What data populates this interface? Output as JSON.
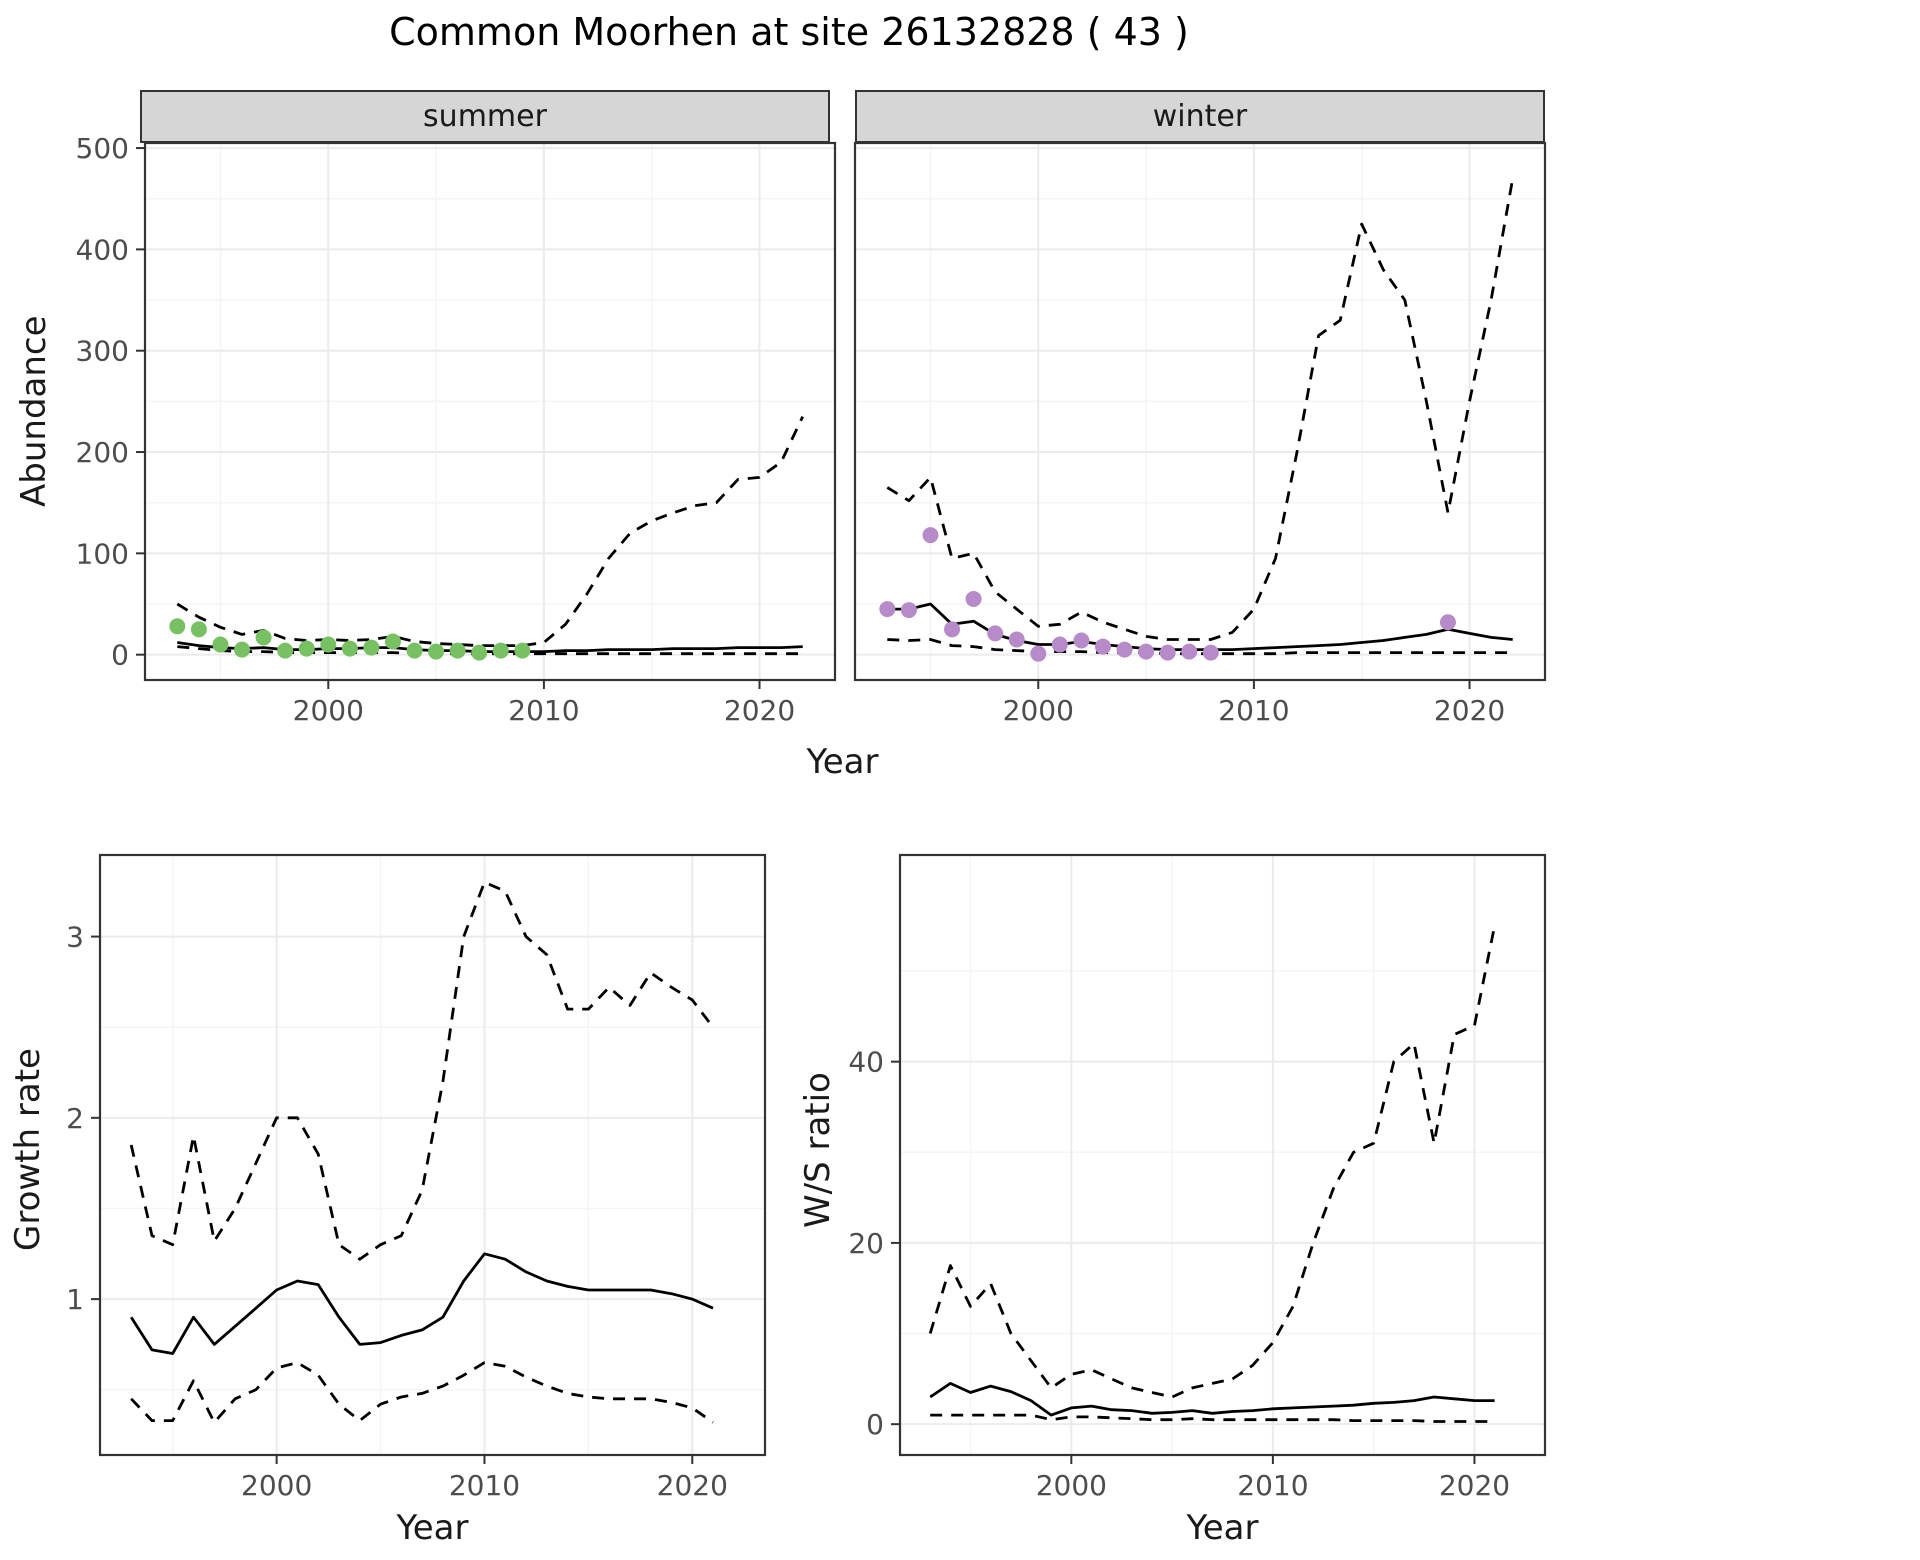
{
  "title": "Common Moorhen at site 26132828 ( 43 )",
  "axis_labels": {
    "top_y": "Abundance",
    "top_x": "Year",
    "bottom_left_y": "Growth rate",
    "bottom_left_x": "Year",
    "bottom_right_y": "W/S ratio",
    "bottom_right_x": "Year"
  },
  "colors": {
    "summer_point": "#78c163",
    "winter_point": "#b78bca",
    "line": "#000000",
    "strip_bg": "#d6d6d6",
    "grid_major": "#ebebeb",
    "grid_minor": "#f5f5f5",
    "panel_border": "#333333",
    "tick_label": "#4d4d4d",
    "text": "#1a1a1a"
  },
  "chart_data": [
    {
      "id": "summer-abundance",
      "type": "line",
      "title": "summer",
      "xlabel": "Year",
      "ylabel": "Abundance",
      "xlim": [
        1991.5,
        2023.5
      ],
      "ylim": [
        -25,
        505
      ],
      "xticks": [
        2000,
        2010,
        2020
      ],
      "yticks": [
        0,
        100,
        200,
        300,
        400,
        500
      ],
      "xticks_minor": [
        1995,
        2005,
        2015
      ],
      "yticks_minor": [
        50,
        150,
        250,
        350,
        450
      ],
      "series": [
        {
          "name": "upper-ci",
          "style": "dashed",
          "x": [
            1993,
            1994,
            1995,
            1996,
            1997,
            1998,
            1999,
            2000,
            2001,
            2002,
            2003,
            2004,
            2005,
            2006,
            2007,
            2008,
            2009,
            2010,
            2011,
            2012,
            2013,
            2014,
            2015,
            2016,
            2017,
            2018,
            2019,
            2020,
            2021,
            2022
          ],
          "values": [
            50,
            37,
            27,
            20,
            24,
            16,
            14,
            15,
            14,
            15,
            18,
            13,
            11,
            10,
            9,
            9,
            9,
            12,
            30,
            60,
            95,
            120,
            132,
            140,
            147,
            150,
            173,
            175,
            190,
            235
          ]
        },
        {
          "name": "lower-ci",
          "style": "dashed",
          "x": [
            1993,
            1994,
            1995,
            1996,
            1997,
            1998,
            1999,
            2000,
            2001,
            2002,
            2003,
            2004,
            2005,
            2006,
            2007,
            2008,
            2009,
            2010,
            2011,
            2012,
            2013,
            2014,
            2015,
            2016,
            2017,
            2018,
            2019,
            2020,
            2021,
            2022
          ],
          "values": [
            8,
            6,
            4,
            3,
            3,
            2,
            2,
            2,
            2,
            2,
            2,
            1,
            1,
            1,
            1,
            1,
            1,
            1,
            1,
            1,
            1,
            1,
            1,
            1,
            1,
            1,
            1,
            1,
            1,
            1
          ]
        },
        {
          "name": "median",
          "style": "solid",
          "x": [
            1993,
            1994,
            1995,
            1996,
            1997,
            1998,
            1999,
            2000,
            2001,
            2002,
            2003,
            2004,
            2005,
            2006,
            2007,
            2008,
            2009,
            2010,
            2011,
            2012,
            2013,
            2014,
            2015,
            2016,
            2017,
            2018,
            2019,
            2020,
            2021,
            2022
          ],
          "values": [
            12,
            9,
            7,
            6,
            7,
            5,
            5,
            6,
            6,
            7,
            7,
            5,
            4,
            4,
            3,
            3,
            3,
            3,
            4,
            4,
            5,
            5,
            5,
            6,
            6,
            6,
            7,
            7,
            7,
            8
          ]
        },
        {
          "name": "observed",
          "style": "points",
          "color": "#78c163",
          "x": [
            1993,
            1994,
            1995,
            1996,
            1997,
            1998,
            1999,
            2000,
            2001,
            2002,
            2003,
            2004,
            2005,
            2006,
            2007,
            2008,
            2009
          ],
          "values": [
            28,
            25,
            10,
            5,
            17,
            4,
            6,
            10,
            6,
            7,
            13,
            4,
            3,
            4,
            2,
            4,
            4
          ]
        }
      ]
    },
    {
      "id": "winter-abundance",
      "type": "line",
      "title": "winter",
      "xlabel": "Year",
      "ylabel": "Abundance",
      "xlim": [
        1991.5,
        2023.5
      ],
      "ylim": [
        -25,
        505
      ],
      "xticks": [
        2000,
        2010,
        2020
      ],
      "yticks": [
        0,
        100,
        200,
        300,
        400,
        500
      ],
      "xticks_minor": [
        1995,
        2005,
        2015
      ],
      "yticks_minor": [
        50,
        150,
        250,
        350,
        450
      ],
      "series": [
        {
          "name": "upper-ci",
          "style": "dashed",
          "x": [
            1993,
            1994,
            1995,
            1996,
            1997,
            1998,
            1999,
            2000,
            2001,
            2002,
            2003,
            2004,
            2005,
            2006,
            2007,
            2008,
            2009,
            2010,
            2011,
            2012,
            2013,
            2014,
            2015,
            2016,
            2017,
            2018,
            2019,
            2020,
            2021,
            2022
          ],
          "values": [
            165,
            152,
            175,
            95,
            100,
            62,
            45,
            28,
            30,
            42,
            32,
            25,
            18,
            15,
            15,
            15,
            22,
            45,
            95,
            200,
            315,
            330,
            425,
            380,
            350,
            250,
            140,
            250,
            350,
            470
          ]
        },
        {
          "name": "lower-ci",
          "style": "dashed",
          "x": [
            1993,
            1994,
            1995,
            1996,
            1997,
            1998,
            1999,
            2000,
            2001,
            2002,
            2003,
            2004,
            2005,
            2006,
            2007,
            2008,
            2009,
            2010,
            2011,
            2012,
            2013,
            2014,
            2015,
            2016,
            2017,
            2018,
            2019,
            2020,
            2021,
            2022
          ],
          "values": [
            15,
            14,
            15,
            9,
            8,
            5,
            4,
            3,
            3,
            3,
            2,
            2,
            2,
            1,
            1,
            1,
            1,
            1,
            1,
            2,
            2,
            2,
            2,
            2,
            2,
            2,
            2,
            2,
            2,
            2
          ]
        },
        {
          "name": "median",
          "style": "solid",
          "x": [
            1993,
            1994,
            1995,
            1996,
            1997,
            1998,
            1999,
            2000,
            2001,
            2002,
            2003,
            2004,
            2005,
            2006,
            2007,
            2008,
            2009,
            2010,
            2011,
            2012,
            2013,
            2014,
            2015,
            2016,
            2017,
            2018,
            2019,
            2020,
            2021,
            2022
          ],
          "values": [
            45,
            45,
            50,
            30,
            33,
            20,
            14,
            10,
            10,
            13,
            10,
            8,
            6,
            5,
            5,
            5,
            5,
            6,
            7,
            8,
            9,
            10,
            12,
            14,
            17,
            20,
            25,
            21,
            17,
            15
          ]
        },
        {
          "name": "observed",
          "style": "points",
          "color": "#b78bca",
          "x": [
            1993,
            1994,
            1995,
            1996,
            1997,
            1998,
            1999,
            2000,
            2001,
            2002,
            2003,
            2004,
            2005,
            2006,
            2007,
            2008,
            2019
          ],
          "values": [
            45,
            44,
            118,
            25,
            55,
            21,
            15,
            1,
            10,
            14,
            8,
            5,
            3,
            2,
            3,
            2,
            32
          ]
        }
      ]
    },
    {
      "id": "growth-rate",
      "type": "line",
      "title": "Growth rate",
      "xlabel": "Year",
      "ylabel": "Growth rate",
      "xlim": [
        1991.5,
        2023.5
      ],
      "ylim": [
        0.14,
        3.45
      ],
      "xticks": [
        2000,
        2010,
        2020
      ],
      "yticks": [
        1,
        2,
        3
      ],
      "xticks_minor": [
        1995,
        2005,
        2015
      ],
      "yticks_minor": [
        0.5,
        1.5,
        2.5
      ],
      "series": [
        {
          "name": "upper-ci",
          "style": "dashed",
          "x": [
            1993,
            1994,
            1995,
            1996,
            1997,
            1998,
            1999,
            2000,
            2001,
            2002,
            2003,
            2004,
            2005,
            2006,
            2007,
            2008,
            2009,
            2010,
            2011,
            2012,
            2013,
            2014,
            2015,
            2016,
            2017,
            2018,
            2019,
            2020,
            2021
          ],
          "values": [
            1.85,
            1.35,
            1.3,
            1.9,
            1.32,
            1.5,
            1.75,
            2.0,
            2.0,
            1.8,
            1.3,
            1.22,
            1.3,
            1.35,
            1.6,
            2.2,
            3.0,
            3.3,
            3.25,
            3.0,
            2.9,
            2.6,
            2.6,
            2.72,
            2.62,
            2.8,
            2.72,
            2.65,
            2.5
          ]
        },
        {
          "name": "lower-ci",
          "style": "dashed",
          "x": [
            1993,
            1994,
            1995,
            1996,
            1997,
            1998,
            1999,
            2000,
            2001,
            2002,
            2003,
            2004,
            2005,
            2006,
            2007,
            2008,
            2009,
            2010,
            2011,
            2012,
            2013,
            2014,
            2015,
            2016,
            2017,
            2018,
            2019,
            2020,
            2021
          ],
          "values": [
            0.45,
            0.33,
            0.33,
            0.55,
            0.32,
            0.45,
            0.5,
            0.62,
            0.65,
            0.58,
            0.42,
            0.33,
            0.42,
            0.46,
            0.48,
            0.52,
            0.58,
            0.65,
            0.63,
            0.57,
            0.52,
            0.48,
            0.46,
            0.45,
            0.45,
            0.45,
            0.43,
            0.4,
            0.32
          ]
        },
        {
          "name": "median",
          "style": "solid",
          "x": [
            1993,
            1994,
            1995,
            1996,
            1997,
            1998,
            1999,
            2000,
            2001,
            2002,
            2003,
            2004,
            2005,
            2006,
            2007,
            2008,
            2009,
            2010,
            2011,
            2012,
            2013,
            2014,
            2015,
            2016,
            2017,
            2018,
            2019,
            2020,
            2021
          ],
          "values": [
            0.9,
            0.72,
            0.7,
            0.9,
            0.75,
            0.85,
            0.95,
            1.05,
            1.1,
            1.08,
            0.9,
            0.75,
            0.76,
            0.8,
            0.83,
            0.9,
            1.1,
            1.25,
            1.22,
            1.15,
            1.1,
            1.07,
            1.05,
            1.05,
            1.05,
            1.05,
            1.03,
            1.0,
            0.95
          ]
        }
      ]
    },
    {
      "id": "ws-ratio",
      "type": "line",
      "title": "W/S ratio",
      "xlabel": "Year",
      "ylabel": "W/S ratio",
      "xlim": [
        1991.5,
        2023.5
      ],
      "ylim": [
        -3.4,
        62.8
      ],
      "xticks": [
        2000,
        2010,
        2020
      ],
      "yticks": [
        0,
        20,
        40
      ],
      "xticks_minor": [
        1995,
        2005,
        2015
      ],
      "yticks_minor": [
        10,
        30,
        50
      ],
      "series": [
        {
          "name": "upper-ci",
          "style": "dashed",
          "x": [
            1993,
            1994,
            1995,
            1996,
            1997,
            1998,
            1999,
            2000,
            2001,
            2002,
            2003,
            2004,
            2005,
            2006,
            2007,
            2008,
            2009,
            2010,
            2011,
            2012,
            2013,
            2014,
            2015,
            2016,
            2017,
            2018,
            2019,
            2020,
            2021
          ],
          "values": [
            10,
            17.5,
            13,
            15.5,
            10,
            7,
            4,
            5.5,
            6,
            5,
            4,
            3.5,
            3,
            4,
            4.5,
            5,
            6.5,
            9,
            13,
            20,
            26,
            30,
            31,
            40,
            42,
            31,
            43,
            44,
            55
          ]
        },
        {
          "name": "lower-ci",
          "style": "dashed",
          "x": [
            1993,
            1994,
            1995,
            1996,
            1997,
            1998,
            1999,
            2000,
            2001,
            2002,
            2003,
            2004,
            2005,
            2006,
            2007,
            2008,
            2009,
            2010,
            2011,
            2012,
            2013,
            2014,
            2015,
            2016,
            2017,
            2018,
            2019,
            2020,
            2021
          ],
          "values": [
            1,
            1,
            1,
            1,
            1,
            1,
            0.5,
            0.8,
            0.8,
            0.7,
            0.6,
            0.5,
            0.5,
            0.6,
            0.5,
            0.5,
            0.5,
            0.5,
            0.5,
            0.5,
            0.5,
            0.4,
            0.4,
            0.4,
            0.4,
            0.3,
            0.3,
            0.3,
            0.3
          ]
        },
        {
          "name": "median",
          "style": "solid",
          "x": [
            1993,
            1994,
            1995,
            1996,
            1997,
            1998,
            1999,
            2000,
            2001,
            2002,
            2003,
            2004,
            2005,
            2006,
            2007,
            2008,
            2009,
            2010,
            2011,
            2012,
            2013,
            2014,
            2015,
            2016,
            2017,
            2018,
            2019,
            2020,
            2021
          ],
          "values": [
            3,
            4.5,
            3.5,
            4.2,
            3.6,
            2.6,
            1,
            1.8,
            2,
            1.6,
            1.5,
            1.2,
            1.3,
            1.5,
            1.2,
            1.4,
            1.5,
            1.7,
            1.8,
            1.9,
            2,
            2.1,
            2.3,
            2.4,
            2.6,
            3,
            2.8,
            2.6,
            2.6
          ]
        }
      ]
    }
  ]
}
